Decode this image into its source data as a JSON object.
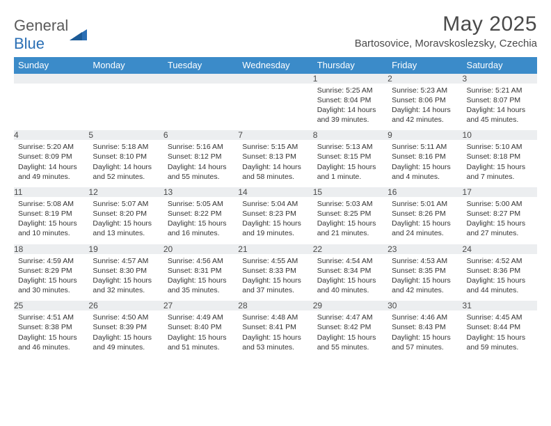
{
  "brand": {
    "part1": "General",
    "part2": "Blue"
  },
  "title": "May 2025",
  "location": "Bartosovice, Moravskoslezsky, Czechia",
  "colors": {
    "header_bg": "#3b8bc9",
    "header_fg": "#ffffff",
    "daynum_bg": "#eceef0",
    "rule": "#3b8bc9",
    "text": "#333333",
    "title": "#4a4a4a"
  },
  "dow": [
    "Sunday",
    "Monday",
    "Tuesday",
    "Wednesday",
    "Thursday",
    "Friday",
    "Saturday"
  ],
  "weeks": [
    [
      null,
      null,
      null,
      null,
      {
        "n": "1",
        "sr": "5:25 AM",
        "ss": "8:04 PM",
        "dl": "14 hours and 39 minutes."
      },
      {
        "n": "2",
        "sr": "5:23 AM",
        "ss": "8:06 PM",
        "dl": "14 hours and 42 minutes."
      },
      {
        "n": "3",
        "sr": "5:21 AM",
        "ss": "8:07 PM",
        "dl": "14 hours and 45 minutes."
      }
    ],
    [
      {
        "n": "4",
        "sr": "5:20 AM",
        "ss": "8:09 PM",
        "dl": "14 hours and 49 minutes."
      },
      {
        "n": "5",
        "sr": "5:18 AM",
        "ss": "8:10 PM",
        "dl": "14 hours and 52 minutes."
      },
      {
        "n": "6",
        "sr": "5:16 AM",
        "ss": "8:12 PM",
        "dl": "14 hours and 55 minutes."
      },
      {
        "n": "7",
        "sr": "5:15 AM",
        "ss": "8:13 PM",
        "dl": "14 hours and 58 minutes."
      },
      {
        "n": "8",
        "sr": "5:13 AM",
        "ss": "8:15 PM",
        "dl": "15 hours and 1 minute."
      },
      {
        "n": "9",
        "sr": "5:11 AM",
        "ss": "8:16 PM",
        "dl": "15 hours and 4 minutes."
      },
      {
        "n": "10",
        "sr": "5:10 AM",
        "ss": "8:18 PM",
        "dl": "15 hours and 7 minutes."
      }
    ],
    [
      {
        "n": "11",
        "sr": "5:08 AM",
        "ss": "8:19 PM",
        "dl": "15 hours and 10 minutes."
      },
      {
        "n": "12",
        "sr": "5:07 AM",
        "ss": "8:20 PM",
        "dl": "15 hours and 13 minutes."
      },
      {
        "n": "13",
        "sr": "5:05 AM",
        "ss": "8:22 PM",
        "dl": "15 hours and 16 minutes."
      },
      {
        "n": "14",
        "sr": "5:04 AM",
        "ss": "8:23 PM",
        "dl": "15 hours and 19 minutes."
      },
      {
        "n": "15",
        "sr": "5:03 AM",
        "ss": "8:25 PM",
        "dl": "15 hours and 21 minutes."
      },
      {
        "n": "16",
        "sr": "5:01 AM",
        "ss": "8:26 PM",
        "dl": "15 hours and 24 minutes."
      },
      {
        "n": "17",
        "sr": "5:00 AM",
        "ss": "8:27 PM",
        "dl": "15 hours and 27 minutes."
      }
    ],
    [
      {
        "n": "18",
        "sr": "4:59 AM",
        "ss": "8:29 PM",
        "dl": "15 hours and 30 minutes."
      },
      {
        "n": "19",
        "sr": "4:57 AM",
        "ss": "8:30 PM",
        "dl": "15 hours and 32 minutes."
      },
      {
        "n": "20",
        "sr": "4:56 AM",
        "ss": "8:31 PM",
        "dl": "15 hours and 35 minutes."
      },
      {
        "n": "21",
        "sr": "4:55 AM",
        "ss": "8:33 PM",
        "dl": "15 hours and 37 minutes."
      },
      {
        "n": "22",
        "sr": "4:54 AM",
        "ss": "8:34 PM",
        "dl": "15 hours and 40 minutes."
      },
      {
        "n": "23",
        "sr": "4:53 AM",
        "ss": "8:35 PM",
        "dl": "15 hours and 42 minutes."
      },
      {
        "n": "24",
        "sr": "4:52 AM",
        "ss": "8:36 PM",
        "dl": "15 hours and 44 minutes."
      }
    ],
    [
      {
        "n": "25",
        "sr": "4:51 AM",
        "ss": "8:38 PM",
        "dl": "15 hours and 46 minutes."
      },
      {
        "n": "26",
        "sr": "4:50 AM",
        "ss": "8:39 PM",
        "dl": "15 hours and 49 minutes."
      },
      {
        "n": "27",
        "sr": "4:49 AM",
        "ss": "8:40 PM",
        "dl": "15 hours and 51 minutes."
      },
      {
        "n": "28",
        "sr": "4:48 AM",
        "ss": "8:41 PM",
        "dl": "15 hours and 53 minutes."
      },
      {
        "n": "29",
        "sr": "4:47 AM",
        "ss": "8:42 PM",
        "dl": "15 hours and 55 minutes."
      },
      {
        "n": "30",
        "sr": "4:46 AM",
        "ss": "8:43 PM",
        "dl": "15 hours and 57 minutes."
      },
      {
        "n": "31",
        "sr": "4:45 AM",
        "ss": "8:44 PM",
        "dl": "15 hours and 59 minutes."
      }
    ]
  ],
  "labels": {
    "sunrise": "Sunrise:",
    "sunset": "Sunset:",
    "daylight": "Daylight:"
  }
}
